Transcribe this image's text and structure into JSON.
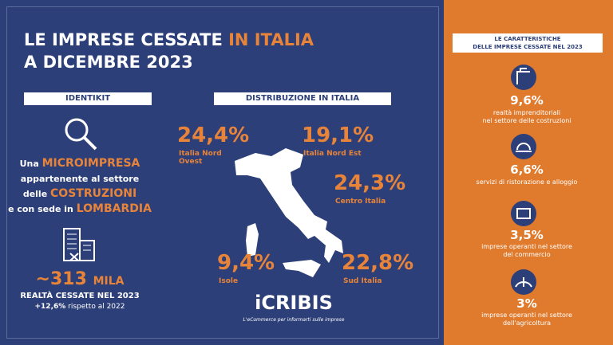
{
  "header": {
    "title_part1": "LE IMPRESE CESSATE",
    "title_highlight": "IN ITALIA",
    "title_line2": "A DICEMBRE 2023"
  },
  "identikit": {
    "label": "IDENTIKIT",
    "description": [
      [
        "Una",
        "MICROIMPRESA"
      ],
      [
        "appartenente al settore"
      ],
      [
        "delle",
        "COSTRUZIONI"
      ],
      [
        "e con sede in",
        "LOMBARDIA"
      ]
    ]
  },
  "stat": {
    "value": "~313",
    "unit": "MILA",
    "label": "REALTÀ CESSATE NEL 2023",
    "change": "+12,6%",
    "change_note": "rispetto al 2022"
  },
  "distribution": {
    "label": "DISTRIBUZIONE IN ITALIA",
    "regions": [
      {
        "value": "24,4%",
        "name": "Italia Nord Ovest"
      },
      {
        "value": "19,1%",
        "name": "Italia Nord Est"
      },
      {
        "value": "24,3%",
        "name": "Centro Italia"
      },
      {
        "value": "9,4%",
        "name": "Isole"
      },
      {
        "value": "22,8%",
        "name": "Sud Italia"
      }
    ]
  },
  "brand": {
    "name": "iCRIBIS",
    "tagline": "L'eCommerce per informarti sulle imprese"
  },
  "characteristics": {
    "title_line1": "LE CARATTERISTICHE",
    "title_line2": "DELLE IMPRESE CESSATE NEL 2023",
    "items": [
      {
        "value": "9,6%",
        "description": [
          "realtà imprenditoriali",
          "nel settore delle costruzioni"
        ]
      },
      {
        "value": "6,6%",
        "description": [
          "servizi di ristorazione e alloggio"
        ]
      },
      {
        "value": "3,5%",
        "description": [
          "imprese operanti nel settore",
          "del commercio"
        ]
      },
      {
        "value": "3%",
        "description": [
          "imprese operanti nel settore",
          "dell'agricoltura"
        ]
      }
    ]
  }
}
